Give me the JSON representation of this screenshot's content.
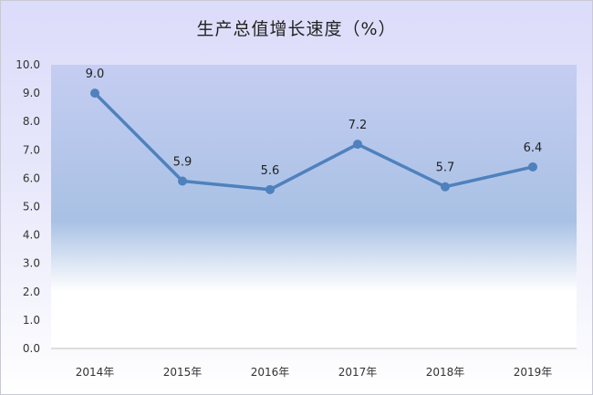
{
  "chart_data": {
    "type": "line",
    "title": "生产总值增长速度（%）",
    "categories": [
      "2014年",
      "2015年",
      "2016年",
      "2017年",
      "2018年",
      "2019年"
    ],
    "series": [
      {
        "values": [
          9.0,
          5.9,
          5.6,
          7.2,
          5.7,
          6.4
        ],
        "labels": [
          "9.0",
          "5.9",
          "5.6",
          "7.2",
          "5.7",
          "6.4"
        ]
      }
    ],
    "yticks": [
      "0.0",
      "1.0",
      "2.0",
      "3.0",
      "4.0",
      "5.0",
      "6.0",
      "7.0",
      "8.0",
      "9.0",
      "10.0"
    ],
    "ylim": [
      0,
      10
    ],
    "grid": false,
    "legend": "none",
    "colors": {
      "line": "#4f81bd",
      "plot_top": "#c5cdf2",
      "plot_mid": "#a8c1e4",
      "plot_bottom": "#ffffff"
    }
  }
}
